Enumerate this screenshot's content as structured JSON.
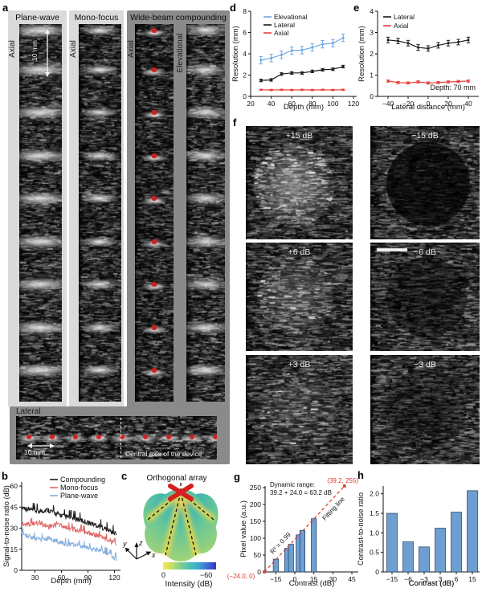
{
  "figure": {
    "panel_labels": {
      "a": "a",
      "b": "b",
      "c": "c",
      "d": "d",
      "e": "e",
      "f": "f",
      "g": "g",
      "h": "h"
    },
    "panel_a": {
      "columns": [
        {
          "title": "Plane-wave",
          "side_label": "Axial"
        },
        {
          "title": "Mono-focus",
          "side_label": "Axial"
        },
        {
          "title": "Wide-beam compounding",
          "side_label": "Axial",
          "side_label_2": "Elevational"
        }
      ],
      "depth_scale_annotation": "10 mm",
      "lateral_strip": {
        "label": "Lateral",
        "scale_annotation": "10 mm",
        "center_axis_annotation": "Central axis of the device"
      }
    },
    "panel_c": {
      "title": "Orthogonal array",
      "colorbar": {
        "min_label": "0",
        "max_label": "−60",
        "title": "Intensity (dB)"
      },
      "axes": [
        "y",
        "z",
        "x"
      ]
    },
    "panel_f": {
      "images": [
        {
          "label": "+15 dB"
        },
        {
          "label": "−15 dB"
        },
        {
          "label": "+6 dB"
        },
        {
          "label": "−6 dB"
        },
        {
          "label": "+3 dB"
        },
        {
          "label": "−3 dB"
        }
      ]
    }
  },
  "chart_data": [
    {
      "id": "d",
      "type": "line",
      "xlabel": "Depth (mm)",
      "ylabel": "Resolution (mm)",
      "xlim": [
        20,
        120
      ],
      "ylim": [
        0,
        8
      ],
      "xticks": [
        20,
        40,
        60,
        80,
        100,
        120
      ],
      "yticks": [
        0,
        2,
        4,
        6,
        8
      ],
      "x": [
        30,
        40,
        50,
        60,
        70,
        80,
        90,
        100,
        110
      ],
      "series": [
        {
          "name": "Elevational",
          "color": "#6ea6e0",
          "values": [
            3.4,
            3.6,
            3.9,
            4.3,
            4.35,
            4.6,
            4.9,
            5.0,
            5.5
          ],
          "err": 0.35
        },
        {
          "name": "Lateral",
          "color": "#1a1a1a",
          "values": [
            1.5,
            1.55,
            2.1,
            2.2,
            2.2,
            2.35,
            2.5,
            2.55,
            2.8
          ],
          "err": 0.12
        },
        {
          "name": "Axial",
          "color": "#e8403a",
          "values": [
            0.62,
            0.6,
            0.62,
            0.6,
            0.62,
            0.6,
            0.62,
            0.6,
            0.62
          ],
          "err": 0.05
        }
      ],
      "legend_position": "top-left",
      "grid": false
    },
    {
      "id": "e",
      "type": "line",
      "xlabel": "Lateral distance (mm)",
      "ylabel": "Resolution (mm)",
      "xlim": [
        -45,
        45
      ],
      "ylim": [
        0,
        4
      ],
      "xticks": [
        -40,
        -20,
        0,
        20,
        40
      ],
      "yticks": [
        0,
        1,
        2,
        3,
        4
      ],
      "x": [
        -40,
        -30,
        -20,
        -10,
        0,
        10,
        20,
        30,
        40
      ],
      "series": [
        {
          "name": "Lateral",
          "color": "#1a1a1a",
          "values": [
            2.65,
            2.6,
            2.5,
            2.3,
            2.25,
            2.4,
            2.5,
            2.55,
            2.65
          ],
          "err": 0.13
        },
        {
          "name": "Axial",
          "color": "#e8403a",
          "values": [
            0.72,
            0.65,
            0.63,
            0.68,
            0.63,
            0.65,
            0.68,
            0.7,
            0.72
          ],
          "err": 0.05
        }
      ],
      "annotation": "Depth: 70 mm",
      "legend_position": "top-left",
      "grid": false
    },
    {
      "id": "b",
      "type": "line-noisy",
      "xlabel": "Depth (mm)",
      "ylabel": "Signal-to-noise ratio (dB)",
      "xlim": [
        15,
        125
      ],
      "ylim": [
        0,
        60
      ],
      "xticks": [
        30,
        60,
        90,
        120
      ],
      "yticks": [
        0,
        15,
        30,
        45,
        60
      ],
      "x": [
        15,
        25,
        35,
        45,
        55,
        65,
        75,
        85,
        95,
        105,
        115,
        122
      ],
      "series": [
        {
          "name": "Compounding",
          "color": "#1a1a1a",
          "values": [
            45,
            43,
            42,
            43,
            40,
            38,
            37,
            35,
            33,
            31,
            28,
            26
          ]
        },
        {
          "name": "Mono-focus",
          "color": "#e06666",
          "values": [
            33,
            33,
            34,
            31,
            33,
            31,
            29,
            28,
            26,
            24,
            21,
            18
          ]
        },
        {
          "name": "Plane-wave",
          "color": "#85aedd",
          "values": [
            26,
            24,
            22,
            23,
            21,
            19,
            18,
            17,
            15,
            14,
            11,
            8
          ]
        }
      ],
      "legend_position": "top-right",
      "grid": false
    },
    {
      "id": "g",
      "type": "bar-fit",
      "xlabel": "Contrast (dB)",
      "ylabel": "Pixel value (a.u.)",
      "xlim": [
        -27,
        47
      ],
      "ylim": [
        0,
        255
      ],
      "xticks": [
        -15,
        0,
        15,
        30,
        45
      ],
      "yticks": [
        0,
        50,
        100,
        150,
        200,
        250
      ],
      "bars": {
        "x": [
          -15,
          -6,
          -3,
          3,
          6,
          15
        ],
        "values": [
          38,
          70,
          82,
          110,
          123,
          158
        ],
        "color": "#6f9fd0"
      },
      "fit_line": {
        "from": [
          -24,
          0
        ],
        "to": [
          39.2,
          255
        ],
        "color": "#e0352b"
      },
      "annotations": {
        "dynamic_range_1": "Dynamic range:",
        "dynamic_range_2": "39.2 + 24.0 = 63.2 dB",
        "r2": "R² = 0.99",
        "fit_label": "Fitting line",
        "end_point": "(39.2, 255)",
        "start_point": "(−24.0, 0)"
      },
      "grid": false
    },
    {
      "id": "h",
      "type": "bar",
      "xlabel": "Contrast (dB)",
      "ylabel": "Contrast-to-noise ratio",
      "categories": [
        "−15",
        "−6",
        "−3",
        "3",
        "6",
        "15"
      ],
      "values": [
        1.5,
        0.77,
        0.64,
        1.12,
        1.53,
        2.08
      ],
      "yticks": [
        0,
        0.5,
        1.0,
        1.5,
        2.0
      ],
      "ylim": [
        0,
        2.2
      ],
      "bar_color": "#6f9fd0",
      "grid": false
    }
  ]
}
